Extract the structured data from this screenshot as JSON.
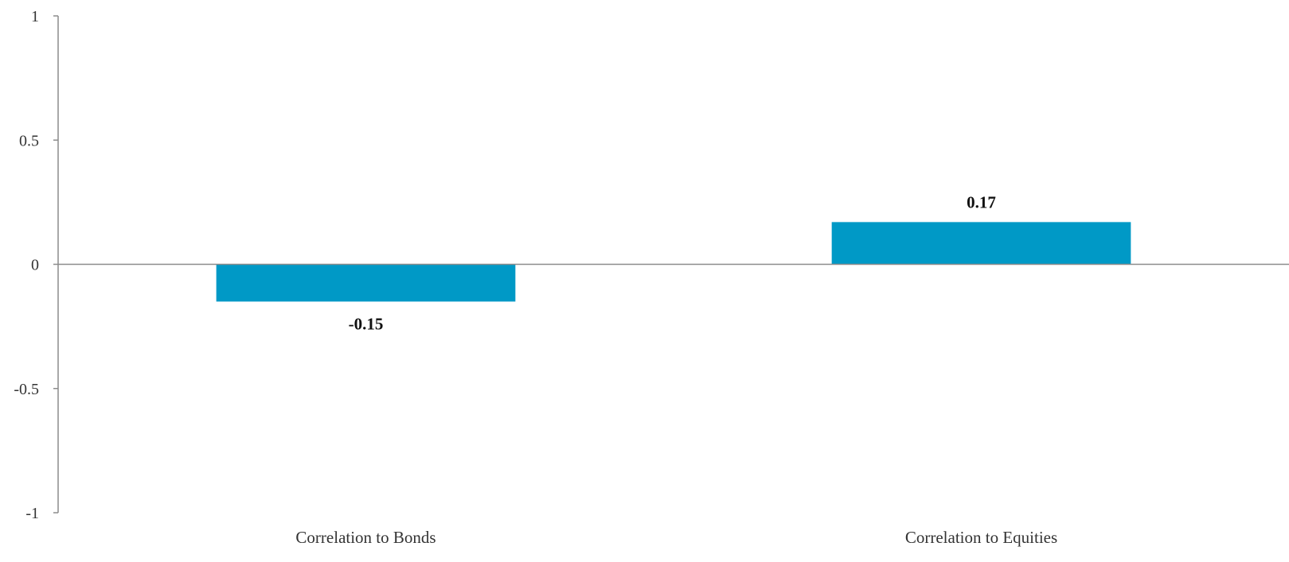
{
  "chart_data": {
    "type": "bar",
    "title": "",
    "xlabel": "",
    "ylabel": "",
    "categories": [
      "Correlation to Bonds",
      "Correlation to Equities"
    ],
    "values": [
      -0.15,
      0.17
    ],
    "data_labels": [
      "-0.15",
      "0.17"
    ],
    "ylim": [
      -1,
      1
    ],
    "yticks": [
      1,
      0.5,
      0,
      -0.5,
      -1
    ],
    "ytick_labels": [
      "1",
      "0.5",
      "0",
      "-0.5",
      "-1"
    ],
    "bar_color": "#0099C6",
    "axis_color": "#8C8C8C",
    "grid": false,
    "legend": "none"
  }
}
